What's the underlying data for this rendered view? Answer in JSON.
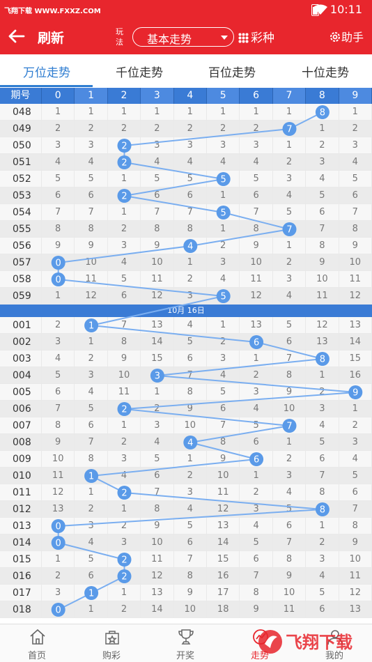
{
  "status": {
    "watermark": "飞翔下载 WWW.FXXZ.COM",
    "time": "10:11"
  },
  "appbar": {
    "refresh": "刷新",
    "play_label": "玩法",
    "mode": "基本走势",
    "lottery": "彩种",
    "help": "助手"
  },
  "tabs": [
    "万位走势",
    "千位走势",
    "百位走势",
    "十位走势"
  ],
  "table": {
    "header_issue": "期号",
    "columns": [
      "0",
      "1",
      "2",
      "3",
      "4",
      "5",
      "6",
      "7",
      "8",
      "9"
    ],
    "date_label": "10月 16日",
    "rows_before": [
      {
        "issue": "048",
        "win": 8,
        "cells": [
          1,
          1,
          1,
          1,
          1,
          1,
          1,
          1,
          null,
          1
        ]
      },
      {
        "issue": "049",
        "win": 7,
        "cells": [
          2,
          2,
          2,
          2,
          2,
          2,
          2,
          null,
          1,
          2
        ]
      },
      {
        "issue": "050",
        "win": 2,
        "cells": [
          3,
          3,
          null,
          3,
          3,
          3,
          3,
          1,
          2,
          3
        ]
      },
      {
        "issue": "051",
        "win": 2,
        "cells": [
          4,
          4,
          null,
          4,
          4,
          4,
          4,
          2,
          3,
          4
        ]
      },
      {
        "issue": "052",
        "win": 5,
        "cells": [
          5,
          5,
          1,
          5,
          5,
          null,
          5,
          3,
          4,
          5
        ]
      },
      {
        "issue": "053",
        "win": 2,
        "cells": [
          6,
          6,
          null,
          6,
          6,
          1,
          6,
          4,
          5,
          6
        ]
      },
      {
        "issue": "054",
        "win": 5,
        "cells": [
          7,
          7,
          1,
          7,
          7,
          null,
          7,
          5,
          6,
          7
        ]
      },
      {
        "issue": "055",
        "win": 7,
        "cells": [
          8,
          8,
          2,
          8,
          8,
          1,
          8,
          null,
          7,
          8
        ]
      },
      {
        "issue": "056",
        "win": 4,
        "cells": [
          9,
          9,
          3,
          9,
          null,
          2,
          9,
          1,
          8,
          9
        ]
      },
      {
        "issue": "057",
        "win": 0,
        "cells": [
          null,
          10,
          4,
          10,
          1,
          3,
          10,
          2,
          9,
          10
        ]
      },
      {
        "issue": "058",
        "win": 0,
        "cells": [
          null,
          11,
          5,
          11,
          2,
          4,
          11,
          3,
          10,
          11
        ]
      },
      {
        "issue": "059",
        "win": 5,
        "cells": [
          1,
          12,
          6,
          12,
          3,
          null,
          12,
          4,
          11,
          12
        ]
      }
    ],
    "rows_after": [
      {
        "issue": "001",
        "win": 1,
        "cells": [
          2,
          null,
          7,
          13,
          4,
          1,
          13,
          5,
          12,
          13
        ]
      },
      {
        "issue": "002",
        "win": 6,
        "cells": [
          3,
          1,
          8,
          14,
          5,
          2,
          null,
          6,
          13,
          14
        ]
      },
      {
        "issue": "003",
        "win": 8,
        "cells": [
          4,
          2,
          9,
          15,
          6,
          3,
          1,
          7,
          null,
          15
        ]
      },
      {
        "issue": "004",
        "win": 3,
        "cells": [
          5,
          3,
          10,
          null,
          7,
          4,
          2,
          8,
          1,
          16
        ]
      },
      {
        "issue": "005",
        "win": 9,
        "cells": [
          6,
          4,
          11,
          1,
          8,
          5,
          3,
          9,
          2,
          null
        ]
      },
      {
        "issue": "006",
        "win": 2,
        "cells": [
          7,
          5,
          null,
          2,
          9,
          6,
          4,
          10,
          3,
          1
        ]
      },
      {
        "issue": "007",
        "win": 7,
        "cells": [
          8,
          6,
          1,
          3,
          10,
          7,
          5,
          null,
          4,
          2
        ]
      },
      {
        "issue": "008",
        "win": 4,
        "cells": [
          9,
          7,
          2,
          4,
          null,
          8,
          6,
          1,
          5,
          3
        ]
      },
      {
        "issue": "009",
        "win": 6,
        "cells": [
          10,
          8,
          3,
          5,
          1,
          9,
          null,
          2,
          6,
          4
        ]
      },
      {
        "issue": "010",
        "win": 1,
        "cells": [
          11,
          null,
          4,
          6,
          2,
          10,
          1,
          3,
          7,
          5
        ]
      },
      {
        "issue": "011",
        "win": 2,
        "cells": [
          12,
          1,
          null,
          7,
          3,
          11,
          2,
          4,
          8,
          6
        ]
      },
      {
        "issue": "012",
        "win": 8,
        "cells": [
          13,
          2,
          1,
          8,
          4,
          12,
          3,
          5,
          null,
          7
        ]
      },
      {
        "issue": "013",
        "win": 0,
        "cells": [
          null,
          3,
          2,
          9,
          5,
          13,
          4,
          6,
          1,
          8
        ]
      },
      {
        "issue": "014",
        "win": 0,
        "cells": [
          null,
          4,
          3,
          10,
          6,
          14,
          5,
          7,
          2,
          9
        ]
      },
      {
        "issue": "015",
        "win": 2,
        "cells": [
          1,
          5,
          null,
          11,
          7,
          15,
          6,
          8,
          3,
          10
        ]
      },
      {
        "issue": "016",
        "win": 2,
        "cells": [
          2,
          6,
          null,
          12,
          8,
          16,
          7,
          9,
          4,
          11
        ]
      },
      {
        "issue": "017",
        "win": 1,
        "cells": [
          3,
          null,
          1,
          13,
          9,
          17,
          8,
          10,
          5,
          12
        ]
      },
      {
        "issue": "018",
        "win": 0,
        "cells": [
          null,
          1,
          2,
          14,
          10,
          18,
          9,
          11,
          6,
          13
        ]
      }
    ]
  },
  "nav": [
    {
      "label": "首页",
      "icon": "home-icon"
    },
    {
      "label": "购彩",
      "icon": "bag-icon"
    },
    {
      "label": "开奖",
      "icon": "trophy-icon"
    },
    {
      "label": "走势",
      "icon": "trend-icon"
    },
    {
      "label": "我的",
      "icon": "user-icon"
    }
  ],
  "watermark_brand": "飞翔下载"
}
